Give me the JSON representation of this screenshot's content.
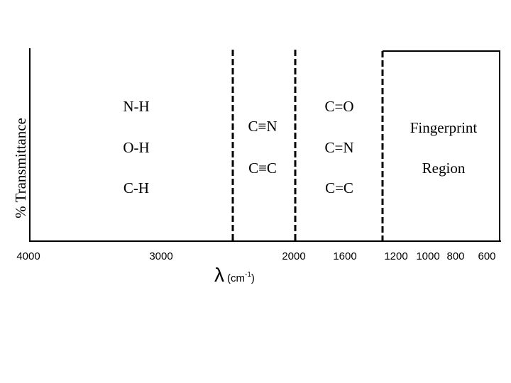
{
  "y_axis_label": "% Transmittance",
  "x_axis_label": {
    "symbol": "λ",
    "unit": "(cm",
    "exponent": "-1",
    "close": ")"
  },
  "x_axis_ticks": [
    4000,
    3000,
    2000,
    1600,
    1200,
    1000,
    800,
    600
  ],
  "regions": [
    {
      "labels": [
        "N-H",
        "O-H",
        "C-H"
      ]
    },
    {
      "labels": [
        "C≡N",
        "C≡C"
      ]
    },
    {
      "labels": [
        "C=O",
        "C=N",
        "C=C"
      ]
    },
    {
      "labels": [
        "Fingerprint",
        "Region"
      ]
    }
  ]
}
